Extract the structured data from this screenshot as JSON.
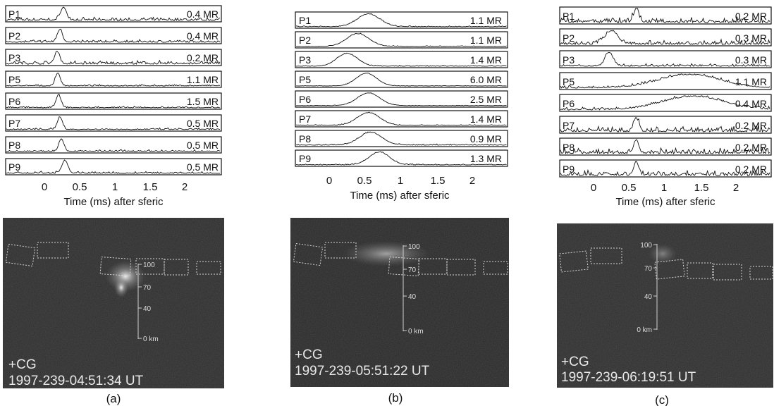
{
  "figure": {
    "panels": [
      {
        "label": "(a)",
        "channels": [
          {
            "name": "P1",
            "value": "0.4 MR"
          },
          {
            "name": "P2",
            "value": "0.4 MR"
          },
          {
            "name": "P3",
            "value": "0.2 MR"
          },
          {
            "name": "P5",
            "value": "1.1 MR"
          },
          {
            "name": "P6",
            "value": "1.5 MR"
          },
          {
            "name": "P7",
            "value": "0.5 MR"
          },
          {
            "name": "P8",
            "value": "0.5 MR"
          },
          {
            "name": "P9",
            "value": "0.5 MR"
          }
        ],
        "xticks": [
          "0",
          "0.5",
          "1",
          "1.5",
          "2"
        ],
        "xlabel": "Time (ms) after sferic",
        "image": {
          "event": "+CG",
          "timestamp": "1997-239-04:51:34 UT",
          "scale_labels": [
            "100",
            "70",
            "40",
            "0 km"
          ]
        }
      },
      {
        "label": "(b)",
        "channels": [
          {
            "name": "P1",
            "value": "1.1 MR"
          },
          {
            "name": "P2",
            "value": "1.1 MR"
          },
          {
            "name": "P3",
            "value": "1.4 MR"
          },
          {
            "name": "P5",
            "value": "6.0 MR"
          },
          {
            "name": "P6",
            "value": "2.5 MR"
          },
          {
            "name": "P7",
            "value": "1.4 MR"
          },
          {
            "name": "P8",
            "value": "0.9 MR"
          },
          {
            "name": "P9",
            "value": "1.3 MR"
          }
        ],
        "xticks": [
          "0",
          "0.5",
          "1",
          "1.5",
          "2"
        ],
        "xlabel": "Time (ms) after sferic",
        "image": {
          "event": "+CG",
          "timestamp": "1997-239-05:51:22 UT",
          "scale_labels": [
            "100",
            "70",
            "40",
            "0 km"
          ]
        }
      },
      {
        "label": "(c)",
        "channels": [
          {
            "name": "P1",
            "value": "0.2 MR"
          },
          {
            "name": "P2",
            "value": "0.3 MR"
          },
          {
            "name": "P3",
            "value": "0.3 MR"
          },
          {
            "name": "P5",
            "value": "1.1 MR"
          },
          {
            "name": "P6",
            "value": "0.4 MR"
          },
          {
            "name": "P7",
            "value": "0.2 MR"
          },
          {
            "name": "P8",
            "value": "0.2 MR"
          },
          {
            "name": "P9",
            "value": "0.2 MR"
          }
        ],
        "xticks": [
          "0",
          "0.5",
          "1",
          "1.5",
          "2"
        ],
        "xlabel": "Time (ms) after sferic",
        "image": {
          "event": "+CG",
          "timestamp": "1997-239-06:19:51 UT",
          "scale_labels": [
            "100",
            "70",
            "40",
            "0 km"
          ]
        }
      }
    ]
  },
  "chart_data": [
    {
      "type": "line",
      "panel": "(a)",
      "xlabel": "Time (ms) after sferic",
      "xlim": [
        -0.35,
        2.5
      ],
      "x_ticks": [
        0,
        0.5,
        1,
        1.5,
        2
      ],
      "series": [
        {
          "name": "P1",
          "peak_ms": 0.27,
          "width_ms": 0.06,
          "noise": 0.25
        },
        {
          "name": "P2",
          "peak_ms": 0.22,
          "width_ms": 0.05,
          "noise": 0.22
        },
        {
          "name": "P3",
          "peak_ms": 0.18,
          "width_ms": 0.05,
          "noise": 0.3
        },
        {
          "name": "P5",
          "peak_ms": 0.19,
          "width_ms": 0.05,
          "noise": 0.12
        },
        {
          "name": "P6",
          "peak_ms": 0.2,
          "width_ms": 0.05,
          "noise": 0.12
        },
        {
          "name": "P7",
          "peak_ms": 0.22,
          "width_ms": 0.05,
          "noise": 0.15
        },
        {
          "name": "P8",
          "peak_ms": 0.24,
          "width_ms": 0.05,
          "noise": 0.15
        },
        {
          "name": "P9",
          "peak_ms": 0.29,
          "width_ms": 0.06,
          "noise": 0.18
        }
      ]
    },
    {
      "type": "line",
      "panel": "(b)",
      "xlabel": "Time (ms) after sferic",
      "xlim": [
        -0.35,
        2.5
      ],
      "x_ticks": [
        0,
        0.5,
        1,
        1.5,
        2
      ],
      "series": [
        {
          "name": "P1",
          "peak_ms": 0.55,
          "width_ms": 0.22,
          "noise": 0.08
        },
        {
          "name": "P2",
          "peak_ms": 0.4,
          "width_ms": 0.22,
          "noise": 0.08
        },
        {
          "name": "P3",
          "peak_ms": 0.25,
          "width_ms": 0.2,
          "noise": 0.08
        },
        {
          "name": "P5",
          "peak_ms": 0.52,
          "width_ms": 0.2,
          "noise": 0.04
        },
        {
          "name": "P6",
          "peak_ms": 0.55,
          "width_ms": 0.22,
          "noise": 0.05
        },
        {
          "name": "P7",
          "peak_ms": 0.55,
          "width_ms": 0.22,
          "noise": 0.08
        },
        {
          "name": "P8",
          "peak_ms": 0.58,
          "width_ms": 0.22,
          "noise": 0.1
        },
        {
          "name": "P9",
          "peak_ms": 0.7,
          "width_ms": 0.2,
          "noise": 0.1
        }
      ]
    },
    {
      "type": "line",
      "panel": "(c)",
      "xlabel": "Time (ms) after sferic",
      "xlim": [
        -0.35,
        2.5
      ],
      "x_ticks": [
        0,
        0.5,
        1,
        1.5,
        2
      ],
      "series": [
        {
          "name": "P1",
          "peak_ms": 0.6,
          "width_ms": 0.05,
          "noise": 0.45
        },
        {
          "name": "P2",
          "peak_ms": 0.25,
          "width_ms": 0.12,
          "noise": 0.35
        },
        {
          "name": "P3",
          "peak_ms": 0.22,
          "width_ms": 0.08,
          "noise": 0.2
        },
        {
          "name": "P5",
          "peak_ms": 1.35,
          "width_ms": 0.6,
          "noise": 0.2
        },
        {
          "name": "P6",
          "peak_ms": 1.4,
          "width_ms": 0.6,
          "noise": 0.25
        },
        {
          "name": "P7",
          "peak_ms": 0.6,
          "width_ms": 0.05,
          "noise": 0.45
        },
        {
          "name": "P8",
          "peak_ms": 0.6,
          "width_ms": 0.05,
          "noise": 0.45
        },
        {
          "name": "P9",
          "peak_ms": 0.6,
          "width_ms": 0.05,
          "noise": 0.4
        }
      ]
    }
  ]
}
